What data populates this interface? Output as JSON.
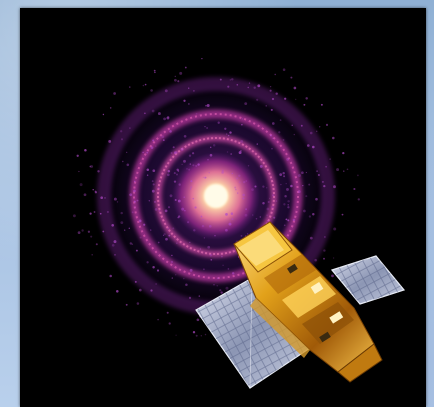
{
  "image": {
    "subject": "spacecraft-over-xray-rings",
    "colors": {
      "background_frame": "#9fbbdd",
      "photo_background": "#000000",
      "rings": "#c23aa8",
      "ring_core": "#ffe9c4",
      "spacecraft_body": "#e0a21a",
      "solar_panel": "#b9c2d8"
    },
    "icons": [
      "xray-ring-glow",
      "satellite"
    ]
  }
}
